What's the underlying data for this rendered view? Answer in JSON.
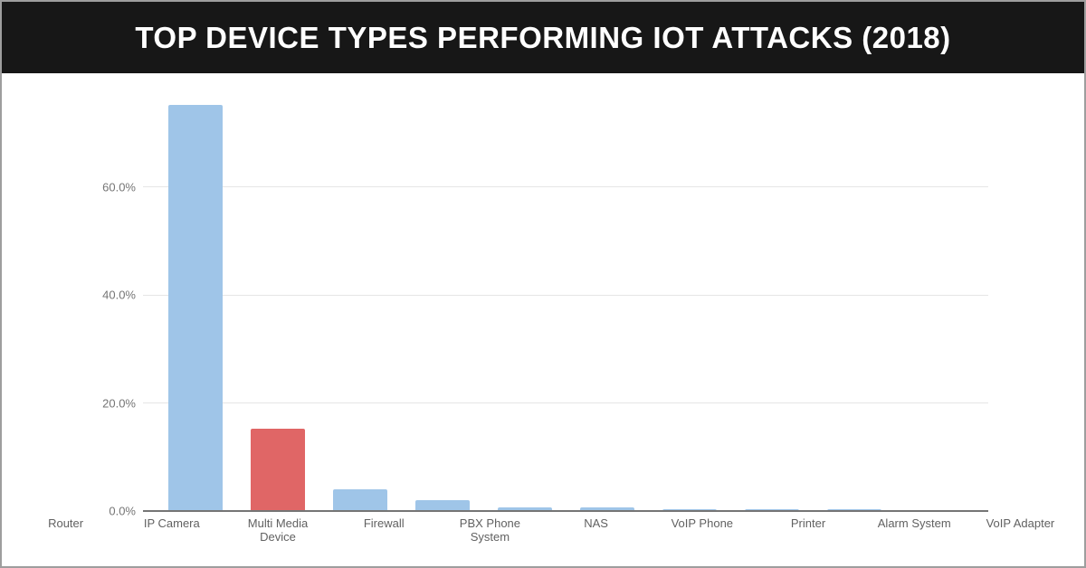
{
  "header": {
    "title": "TOP DEVICE TYPES PERFORMING IOT ATTACKS (2018)",
    "background_color": "#171717",
    "text_color": "#ffffff"
  },
  "chart_data": {
    "type": "bar",
    "title": "TOP DEVICE TYPES PERFORMING IOT ATTACKS (2018)",
    "categories": [
      "Router",
      "IP Camera",
      "Multi Media Device",
      "Firewall",
      "PBX Phone System",
      "NAS",
      "VoIP Phone",
      "Printer",
      "Alarm System",
      "VoIP Adapter"
    ],
    "values": [
      75.2,
      15.2,
      4.1,
      2.0,
      0.7,
      0.7,
      0.3,
      0.3,
      0.3,
      0.1
    ],
    "unit": "%",
    "xlabel": "",
    "ylabel": "",
    "y_ticks": [
      {
        "value": 0,
        "label": "0.0%"
      },
      {
        "value": 20,
        "label": "20.0%"
      },
      {
        "value": 40,
        "label": "40.0%"
      },
      {
        "value": 60,
        "label": "60.0%"
      }
    ],
    "ylim": [
      0,
      81.1
    ],
    "grid": true,
    "legend_position": "none",
    "default_bar_color": "#9fc5e8",
    "highlight": {
      "category": "IP Camera",
      "color": "#e06666"
    },
    "gridline_color": "#e6e6e6",
    "axis_line_color": "#757575"
  }
}
